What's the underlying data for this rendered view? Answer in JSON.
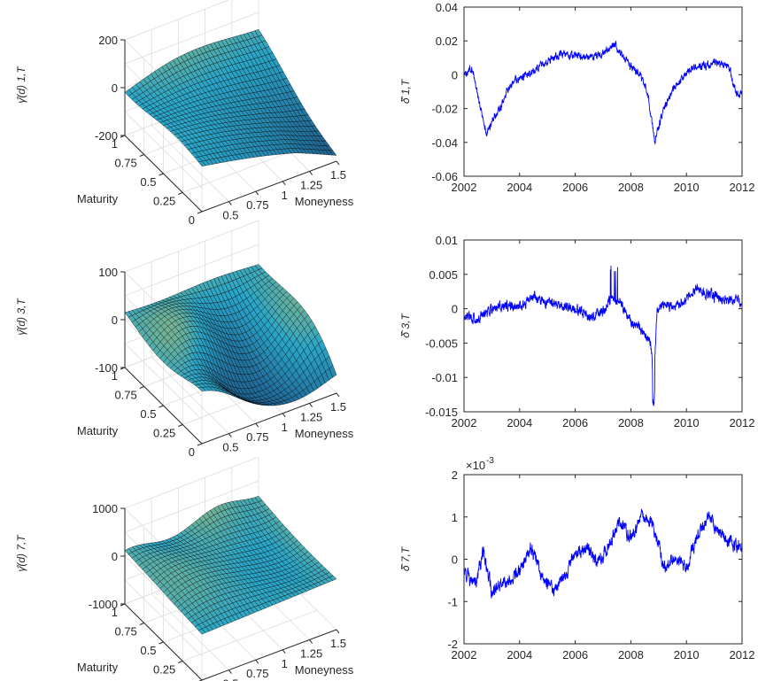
{
  "chart_data": [
    {
      "type": "surface",
      "zlabel": "γ̂(d) 1,T",
      "xlabel": "Maturity",
      "ylabel": "Moneyness",
      "zticks": [
        "200",
        "0",
        "-200"
      ],
      "maturity_ticks": [
        "1",
        "0.75",
        "0.5",
        "0.25",
        "0"
      ],
      "moneyness_ticks": [
        "0.5",
        "0.75",
        "1",
        "1.25",
        "1.5"
      ],
      "zlim": [
        -200,
        200
      ],
      "maturity_range": [
        0,
        1
      ],
      "moneyness_range": [
        0.25,
        1.5
      ],
      "corner_values": {
        "moneyness_0.25_maturity_1": -5,
        "moneyness_1.5_maturity_1": 40,
        "moneyness_0.25_maturity_0": -10,
        "moneyness_1.5_maturity_0": -160
      },
      "colormap": [
        "#0b0c33",
        "#1f5e8f",
        "#2aa6c9",
        "#e8c640"
      ]
    },
    {
      "type": "line",
      "ylabel": "δ̂ 1,T",
      "xticks": [
        "2002",
        "2004",
        "2006",
        "2008",
        "2010",
        "2012"
      ],
      "yticks": [
        "0.04",
        "0.02",
        "0",
        "-0.02",
        "-0.04",
        "-0.06"
      ],
      "xlim": [
        2002,
        2012
      ],
      "ylim": [
        -0.06,
        0.04
      ],
      "color": "#0000ff",
      "anchors": [
        [
          2002.0,
          0.0
        ],
        [
          2002.3,
          0.004
        ],
        [
          2002.6,
          -0.02
        ],
        [
          2002.8,
          -0.035
        ],
        [
          2003.0,
          -0.028
        ],
        [
          2003.3,
          -0.02
        ],
        [
          2003.6,
          -0.008
        ],
        [
          2004.0,
          -0.002
        ],
        [
          2004.5,
          0.002
        ],
        [
          2005.0,
          0.008
        ],
        [
          2005.5,
          0.012
        ],
        [
          2006.0,
          0.012
        ],
        [
          2006.5,
          0.01
        ],
        [
          2007.0,
          0.013
        ],
        [
          2007.4,
          0.018
        ],
        [
          2007.8,
          0.008
        ],
        [
          2008.3,
          0.0
        ],
        [
          2008.6,
          -0.01
        ],
        [
          2008.85,
          -0.04
        ],
        [
          2009.1,
          -0.025
        ],
        [
          2009.4,
          -0.012
        ],
        [
          2009.8,
          -0.002
        ],
        [
          2010.2,
          0.004
        ],
        [
          2010.6,
          0.005
        ],
        [
          2011.0,
          0.007
        ],
        [
          2011.5,
          0.006
        ],
        [
          2011.8,
          -0.012
        ],
        [
          2012.0,
          -0.01
        ]
      ]
    },
    {
      "type": "surface",
      "zlabel": "γ̂(d) 3,T",
      "xlabel": "Maturity",
      "ylabel": "Moneyness",
      "zticks": [
        "100",
        "0",
        "-100"
      ],
      "maturity_ticks": [
        "1",
        "0.75",
        "0.5",
        "0.25",
        "0"
      ],
      "moneyness_ticks": [
        "0.5",
        "0.75",
        "1",
        "1.25",
        "1.5"
      ],
      "zlim": [
        -100,
        100
      ],
      "maturity_range": [
        0,
        1
      ],
      "moneyness_range": [
        0.25,
        1.5
      ],
      "corner_values": {
        "moneyness_0.25_maturity_1": 15,
        "moneyness_1.5_maturity_1": 10,
        "moneyness_0.25_maturity_0": -20,
        "moneyness_1.5_maturity_0": -70
      },
      "colormap": [
        "#0b0c33",
        "#1f5e8f",
        "#2aa6c9",
        "#e8c640"
      ]
    },
    {
      "type": "line",
      "ylabel": "δ̂ 3,T",
      "xticks": [
        "2002",
        "2004",
        "2006",
        "2008",
        "2010",
        "2012"
      ],
      "yticks": [
        "0.01",
        "0.005",
        "0",
        "-0.005",
        "-0.01",
        "-0.015"
      ],
      "xlim": [
        2002,
        2012
      ],
      "ylim": [
        -0.015,
        0.01
      ],
      "color": "#0000ff",
      "anchors": [
        [
          2002.0,
          -0.001
        ],
        [
          2002.5,
          -0.0015
        ],
        [
          2003.0,
          0.0
        ],
        [
          2003.5,
          0.0005
        ],
        [
          2004.0,
          0.0
        ],
        [
          2004.5,
          0.0015
        ],
        [
          2005.0,
          0.001
        ],
        [
          2005.5,
          0.0005
        ],
        [
          2006.0,
          0.0
        ],
        [
          2006.5,
          -0.001
        ],
        [
          2007.0,
          -0.0005
        ],
        [
          2007.3,
          0.0015
        ],
        [
          2007.6,
          0.001
        ],
        [
          2008.0,
          -0.002
        ],
        [
          2008.4,
          -0.003
        ],
        [
          2008.7,
          -0.005
        ],
        [
          2008.82,
          -0.01
        ],
        [
          2008.95,
          0.0
        ],
        [
          2009.3,
          0.0005
        ],
        [
          2009.7,
          0.0005
        ],
        [
          2010.0,
          0.0015
        ],
        [
          2010.4,
          0.003
        ],
        [
          2010.8,
          0.002
        ],
        [
          2011.3,
          0.0015
        ],
        [
          2012.0,
          0.001
        ]
      ]
    },
    {
      "type": "surface",
      "zlabel": "γ̂(d) 7,T",
      "xlabel": "Maturity",
      "ylabel": "Moneyness",
      "zticks": [
        "1000",
        "0",
        "-1000"
      ],
      "maturity_ticks": [
        "1",
        "0.75",
        "0.5",
        "0.25",
        "0"
      ],
      "moneyness_ticks": [
        "0.5",
        "0.75",
        "1",
        "1.25",
        "1.5"
      ],
      "zlim": [
        -1000,
        1000
      ],
      "maturity_range": [
        0,
        1
      ],
      "moneyness_range": [
        0.25,
        1.5
      ],
      "corner_values": {
        "moneyness_0.25_maturity_1": 0,
        "moneyness_1.5_maturity_1": 300,
        "moneyness_0.25_maturity_0": -40,
        "moneyness_1.5_maturity_0": 60
      },
      "colormap": [
        "#0b0c33",
        "#1f5e8f",
        "#2aa6c9",
        "#e8c640"
      ]
    },
    {
      "type": "line",
      "ylabel": "δ̂ 7,T",
      "exponent_label": "×10",
      "exponent_power": "-3",
      "xticks": [
        "2002",
        "2004",
        "2006",
        "2008",
        "2010",
        "2012"
      ],
      "yticks": [
        "2",
        "1",
        "0",
        "-1",
        "-2"
      ],
      "xlim": [
        2002,
        2012
      ],
      "ylim": [
        -0.002,
        0.002
      ],
      "color": "#0000ff",
      "anchors": [
        [
          2002.0,
          -0.0003
        ],
        [
          2002.4,
          -0.0006
        ],
        [
          2002.7,
          0.0002
        ],
        [
          2003.0,
          -0.0008
        ],
        [
          2003.5,
          -0.0005
        ],
        [
          2004.0,
          -0.0003
        ],
        [
          2004.4,
          0.0003
        ],
        [
          2004.8,
          -0.0004
        ],
        [
          2005.2,
          -0.0008
        ],
        [
          2005.6,
          -0.0004
        ],
        [
          2006.0,
          0.0001
        ],
        [
          2006.4,
          0.0003
        ],
        [
          2006.8,
          -0.0001
        ],
        [
          2007.2,
          0.0003
        ],
        [
          2007.6,
          0.0009
        ],
        [
          2008.0,
          0.0005
        ],
        [
          2008.4,
          0.001
        ],
        [
          2008.8,
          0.0008
        ],
        [
          2009.2,
          -0.0002
        ],
        [
          2009.6,
          0.0001
        ],
        [
          2010.0,
          -0.0002
        ],
        [
          2010.4,
          0.0006
        ],
        [
          2010.8,
          0.001
        ],
        [
          2011.2,
          0.0006
        ],
        [
          2011.6,
          0.0004
        ],
        [
          2012.0,
          0.0003
        ]
      ]
    }
  ]
}
